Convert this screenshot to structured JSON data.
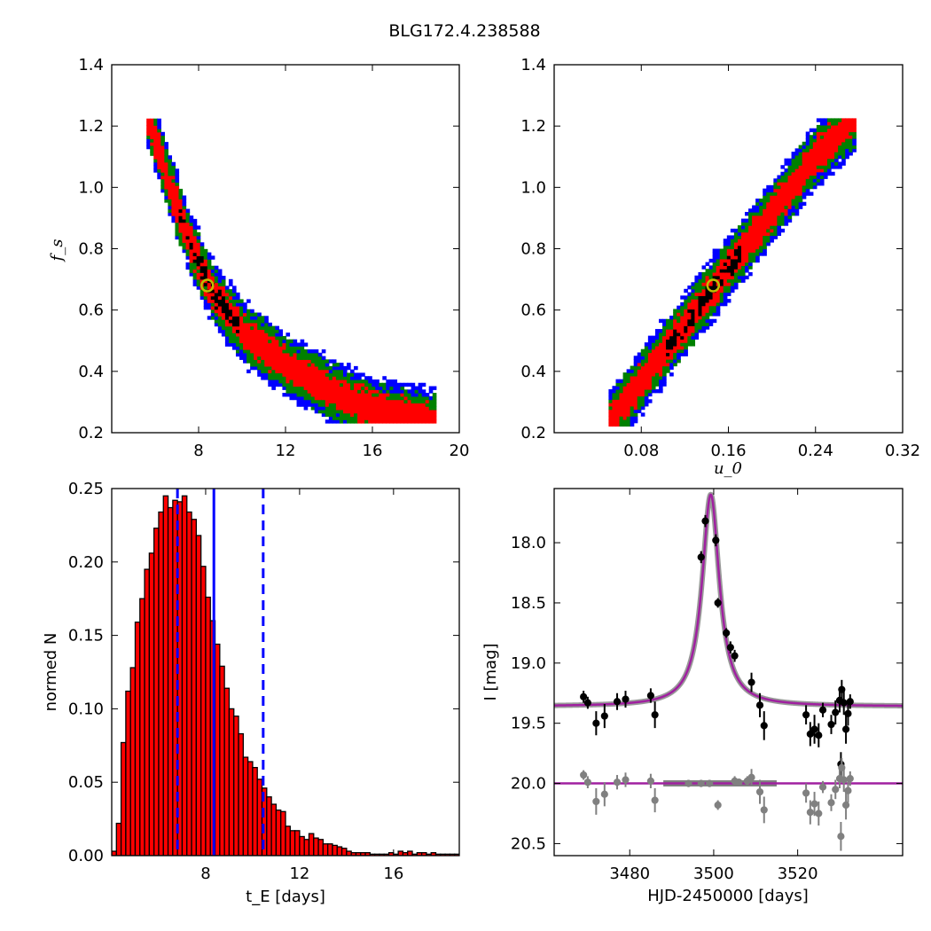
{
  "figure": {
    "title": "BLG172.4.238588"
  },
  "chart_data": [
    {
      "panel": "top-left",
      "type": "heatmap",
      "title": "",
      "xlabel": "",
      "ylabel": "f_s",
      "xlim": [
        4,
        20
      ],
      "ylim": [
        0.2,
        1.4
      ],
      "xticks": [
        "8",
        "12",
        "16",
        "20"
      ],
      "yticks": [
        "0.2",
        "0.4",
        "0.6",
        "0.8",
        "1.0",
        "1.2",
        "1.4"
      ],
      "levels": [
        "blue",
        "green",
        "red",
        "black"
      ],
      "colors": {
        "blue": "#0000ff",
        "green": "#008000",
        "red": "#ff0000",
        "black": "#000000"
      },
      "band": {
        "centerline": [
          [
            5.6,
            1.22
          ],
          [
            6.5,
            1.02
          ],
          [
            7.5,
            0.82
          ],
          [
            8.5,
            0.66
          ],
          [
            10,
            0.52
          ],
          [
            12,
            0.41
          ],
          [
            14,
            0.33
          ],
          [
            16,
            0.27
          ],
          [
            18,
            0.24
          ],
          [
            18.8,
            0.23
          ]
        ],
        "halfwidth_y": {
          "black": 0.025,
          "red": 0.05,
          "green": 0.08,
          "blue": 0.1
        },
        "black_range_x": [
          7.0,
          9.8
        ],
        "y_range": [
          0.23,
          1.22
        ]
      },
      "best_fit": {
        "x": 8.4,
        "y": 0.68,
        "color": "#bfbf00"
      },
      "grid": false
    },
    {
      "panel": "top-right",
      "type": "heatmap",
      "title": "",
      "xlabel": "u_0",
      "ylabel": "",
      "xlim": [
        0,
        0.32
      ],
      "ylim": [
        0.2,
        1.4
      ],
      "xticks": [
        "0.08",
        "0.16",
        "0.24",
        "0.32"
      ],
      "yticks": [
        "0.2",
        "0.4",
        "0.6",
        "0.8",
        "1.0",
        "1.2",
        "1.4"
      ],
      "levels": [
        "blue",
        "green",
        "red",
        "black"
      ],
      "colors": {
        "blue": "#0000ff",
        "green": "#008000",
        "red": "#ff0000",
        "black": "#000000"
      },
      "band": {
        "centerline": [
          [
            0.05,
            0.23
          ],
          [
            0.08,
            0.37
          ],
          [
            0.12,
            0.55
          ],
          [
            0.16,
            0.74
          ],
          [
            0.2,
            0.92
          ],
          [
            0.24,
            1.1
          ],
          [
            0.275,
            1.22
          ]
        ],
        "halfwidth_y": {
          "black": 0.025,
          "red": 0.05,
          "green": 0.08,
          "blue": 0.1
        },
        "black_range_x": [
          0.1,
          0.17
        ],
        "y_range": [
          0.22,
          1.22
        ]
      },
      "best_fit": {
        "x": 0.146,
        "y": 0.68,
        "color": "#bfbf00"
      },
      "grid": false
    },
    {
      "panel": "bottom-left",
      "type": "bar",
      "title": "",
      "xlabel": "t_E [days]",
      "ylabel": "normed N",
      "xlim": [
        4,
        18.8
      ],
      "ylim": [
        0,
        0.25
      ],
      "xticks": [
        "8",
        "12",
        "16"
      ],
      "yticks": [
        "0.00",
        "0.05",
        "0.10",
        "0.15",
        "0.20",
        "0.25"
      ],
      "bin_start": 4.0,
      "bin_width": 0.2,
      "values": [
        0.003,
        0.022,
        0.077,
        0.112,
        0.128,
        0.159,
        0.175,
        0.195,
        0.206,
        0.223,
        0.234,
        0.245,
        0.237,
        0.242,
        0.241,
        0.245,
        0.234,
        0.229,
        0.218,
        0.197,
        0.176,
        0.16,
        0.144,
        0.129,
        0.114,
        0.1,
        0.095,
        0.083,
        0.067,
        0.064,
        0.06,
        0.052,
        0.046,
        0.04,
        0.035,
        0.031,
        0.03,
        0.02,
        0.017,
        0.017,
        0.013,
        0.011,
        0.015,
        0.012,
        0.011,
        0.008,
        0.008,
        0.007,
        0.006,
        0.005,
        0.003,
        0.002,
        0.002,
        0.002,
        0.002,
        0.001,
        0.001,
        0.001,
        0.001,
        0.002,
        0.001,
        0.003,
        0.002,
        0.003,
        0.001,
        0.002,
        0.002,
        0.001,
        0.002,
        0.001,
        0.001,
        0.001,
        0.001,
        0.001
      ],
      "bar_color": "#ff0000",
      "vlines": [
        {
          "x": 6.8,
          "style": "dashed",
          "color": "#0000ff"
        },
        {
          "x": 8.35,
          "style": "solid",
          "color": "#0000ff"
        },
        {
          "x": 10.45,
          "style": "dashed",
          "color": "#0000ff"
        }
      ],
      "grid": false
    },
    {
      "panel": "bottom-right",
      "type": "scatter",
      "title": "",
      "xlabel": "HJD-2450000 [days]",
      "ylabel": "I [mag]",
      "xlim": [
        3462,
        3545
      ],
      "ylim": [
        20.6,
        17.55
      ],
      "y_inverted": true,
      "xticks": [
        "3480",
        "3500",
        "3520"
      ],
      "yticks": [
        "18.0",
        "18.5",
        "19.0",
        "19.5",
        "20.0",
        "20.5"
      ],
      "model": {
        "t0": 3499.3,
        "baseline": 19.36,
        "peak": 17.6,
        "tE": 2.5,
        "color": "#a020a0",
        "residual_level": 20.0
      },
      "series": [
        {
          "name": "",
          "color": "#000000",
          "points": [
            [
              3469,
              19.28,
              0.05
            ],
            [
              3470,
              19.33,
              0.05
            ],
            [
              3472,
              19.5,
              0.1
            ],
            [
              3474,
              19.44,
              0.1
            ],
            [
              3477,
              19.32,
              0.07
            ],
            [
              3479,
              19.3,
              0.07
            ],
            [
              3485,
              19.27,
              0.06
            ],
            [
              3486,
              19.43,
              0.11
            ],
            [
              3497,
              18.12,
              0.05
            ],
            [
              3498,
              17.82,
              0.05
            ],
            [
              3500.5,
              17.98,
              0.05
            ],
            [
              3501,
              18.5,
              0.04
            ],
            [
              3503,
              18.75,
              0.04
            ],
            [
              3504,
              18.87,
              0.05
            ],
            [
              3505,
              18.94,
              0.05
            ],
            [
              3509,
              19.16,
              0.08
            ],
            [
              3511,
              19.35,
              0.1
            ],
            [
              3512,
              19.52,
              0.12
            ],
            [
              3522,
              19.43,
              0.08
            ],
            [
              3523,
              19.59,
              0.1
            ],
            [
              3524,
              19.55,
              0.12
            ],
            [
              3525,
              19.6,
              0.1
            ],
            [
              3526,
              19.39,
              0.06
            ],
            [
              3528,
              19.51,
              0.08
            ],
            [
              3529,
              19.41,
              0.1
            ],
            [
              3530,
              19.31,
              0.1
            ],
            [
              3530.5,
              19.22,
              0.08
            ],
            [
              3531,
              19.33,
              0.1
            ],
            [
              3531.5,
              19.55,
              0.12
            ],
            [
              3532,
              19.42,
              0.1
            ],
            [
              3530.3,
              19.84,
              0.1
            ],
            [
              3532.5,
              19.32,
              0.06
            ]
          ]
        },
        {
          "name": "",
          "color": "#808080",
          "points": [
            [
              3469,
              19.93,
              0.04
            ],
            [
              3470,
              19.99,
              0.05
            ],
            [
              3472,
              20.15,
              0.11
            ],
            [
              3474,
              20.09,
              0.1
            ],
            [
              3477,
              19.99,
              0.06
            ],
            [
              3479,
              19.97,
              0.06
            ],
            [
              3485,
              19.98,
              0.06
            ],
            [
              3486,
              20.14,
              0.1
            ],
            [
              3494,
              20.0,
              0.03
            ],
            [
              3497,
              20.0,
              0.03
            ],
            [
              3499,
              20.0,
              0.03
            ],
            [
              3501,
              20.18,
              0.04
            ],
            [
              3505,
              19.98,
              0.04
            ],
            [
              3506,
              19.99,
              0.03
            ],
            [
              3508,
              19.98,
              0.04
            ],
            [
              3509,
              19.95,
              0.07
            ],
            [
              3511,
              20.07,
              0.1
            ],
            [
              3512,
              20.22,
              0.11
            ],
            [
              3522,
              20.08,
              0.08
            ],
            [
              3523,
              20.24,
              0.1
            ],
            [
              3524,
              20.17,
              0.1
            ],
            [
              3525,
              20.25,
              0.1
            ],
            [
              3526,
              20.03,
              0.05
            ],
            [
              3528,
              20.16,
              0.07
            ],
            [
              3529,
              20.05,
              0.08
            ],
            [
              3530,
              19.96,
              0.08
            ],
            [
              3530.5,
              19.87,
              0.08
            ],
            [
              3531,
              19.97,
              0.1
            ],
            [
              3531.5,
              20.18,
              0.12
            ],
            [
              3532,
              20.06,
              0.1
            ],
            [
              3530.3,
              20.44,
              0.12
            ],
            [
              3532.5,
              19.96,
              0.06
            ]
          ]
        }
      ],
      "grid": false
    }
  ]
}
